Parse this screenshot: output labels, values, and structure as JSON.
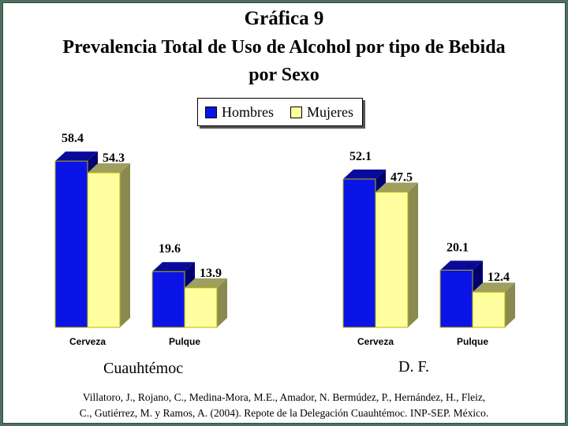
{
  "title_line1": "Gráfica 9",
  "title_line2": "Prevalencia Total de Uso de Alcohol por tipo de Bebida",
  "title_line3": "por Sexo",
  "legend": [
    {
      "label": "Hombres",
      "color": "#0a14e6"
    },
    {
      "label": "Mujeres",
      "color": "#ffffa0"
    }
  ],
  "group_labels": [
    "Cuauhtémoc",
    "D. F."
  ],
  "citation_line1": "Villatoro, J., Rojano, C., Medina-Mora, M.E., Amador, N. Bermúdez, P., Hernández, H., Fleiz,",
  "citation_line2": "C., Gutiérrez, M. y Ramos, A. (2004). Repote de la Delegación Cuauhtémoc. INP-SEP. México.",
  "chart_data": [
    {
      "type": "bar",
      "title": "Cuauhtémoc",
      "categories": [
        "Cerveza",
        "Pulque"
      ],
      "series": [
        {
          "name": "Hombres",
          "values": [
            58.4,
            19.6
          ]
        },
        {
          "name": "Mujeres",
          "values": [
            54.3,
            13.9
          ]
        }
      ],
      "value_labels": true,
      "style": "3d"
    },
    {
      "type": "bar",
      "title": "D. F.",
      "categories": [
        "Cerveza",
        "Pulque"
      ],
      "series": [
        {
          "name": "Hombres",
          "values": [
            52.1,
            20.1
          ]
        },
        {
          "name": "Mujeres",
          "values": [
            47.5,
            12.4
          ]
        }
      ],
      "value_labels": true,
      "style": "3d"
    }
  ],
  "colors": {
    "hombres_side": "#000070",
    "hombres_top": "#0a0a9a",
    "mujeres_side": "#8a8a50",
    "mujeres_top": "#9f9f60",
    "bar_outline": "#b8b800"
  }
}
